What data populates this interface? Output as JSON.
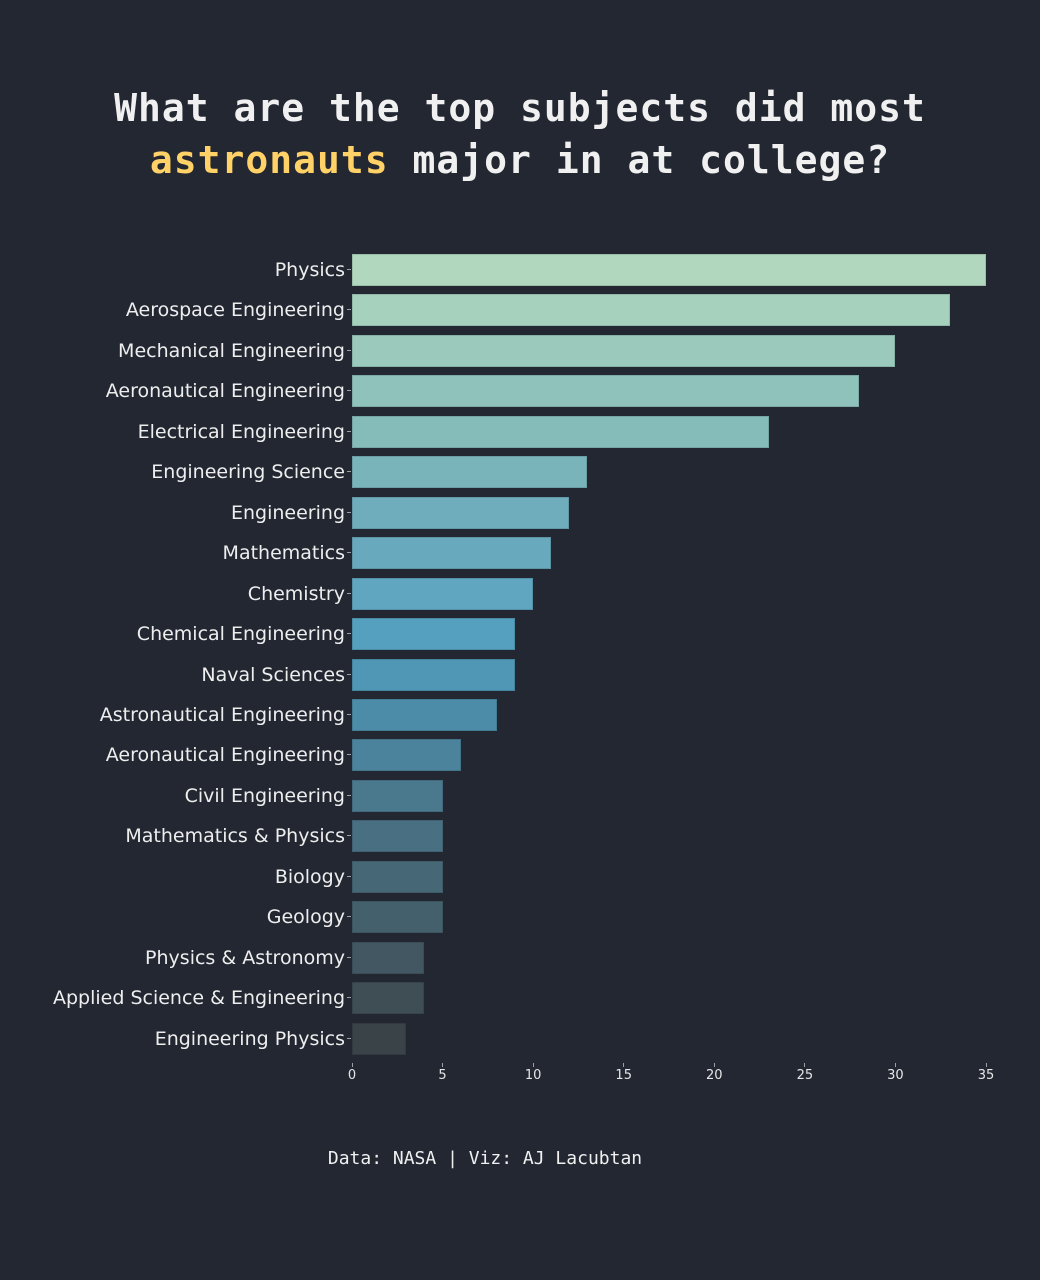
{
  "title": {
    "line1": "What are the top subjects did most",
    "highlight": "astronauts",
    "line2_rest": " major in at college?",
    "highlight_color": "#ffd166"
  },
  "footer": "Data: NASA | Viz: AJ Lacubtan",
  "chart_data": {
    "type": "bar",
    "orientation": "horizontal",
    "title": "What are the top subjects did most astronauts major in at college?",
    "xlabel": "",
    "ylabel": "",
    "xlim": [
      0,
      35
    ],
    "x_ticks": [
      0,
      5,
      10,
      15,
      20,
      25,
      30,
      35
    ],
    "grid": false,
    "legend": null,
    "categories": [
      "Physics",
      "Aerospace Engineering",
      "Mechanical Engineering",
      "Aeronautical Engineering",
      "Electrical Engineering",
      "Engineering Science",
      "Engineering",
      "Mathematics",
      "Chemistry",
      "Chemical Engineering",
      "Naval Sciences",
      "Astronautical Engineering",
      "Aeronautical Engineering",
      "Civil Engineering",
      "Mathematics & Physics",
      "Biology",
      "Geology",
      "Physics & Astronomy",
      "Applied Science & Engineering",
      "Engineering Physics"
    ],
    "values": [
      35,
      33,
      30,
      28,
      23,
      13,
      12,
      11,
      10,
      9,
      9,
      8,
      6,
      5,
      5,
      5,
      5,
      4,
      4,
      3
    ],
    "colors": [
      "#b1d8bf",
      "#a6d1bd",
      "#9bcabc",
      "#8fc2bb",
      "#85bcba",
      "#7ab4bb",
      "#70adbc",
      "#69a9bd",
      "#60a6c0",
      "#55a0be",
      "#4f97b5",
      "#4d8ca8",
      "#4c839c",
      "#4a788d",
      "#496f82",
      "#466776",
      "#44606c",
      "#425762",
      "#3f4d55",
      "#3a4348"
    ],
    "source": "Data: NASA | Viz: AJ Lacubtan"
  }
}
